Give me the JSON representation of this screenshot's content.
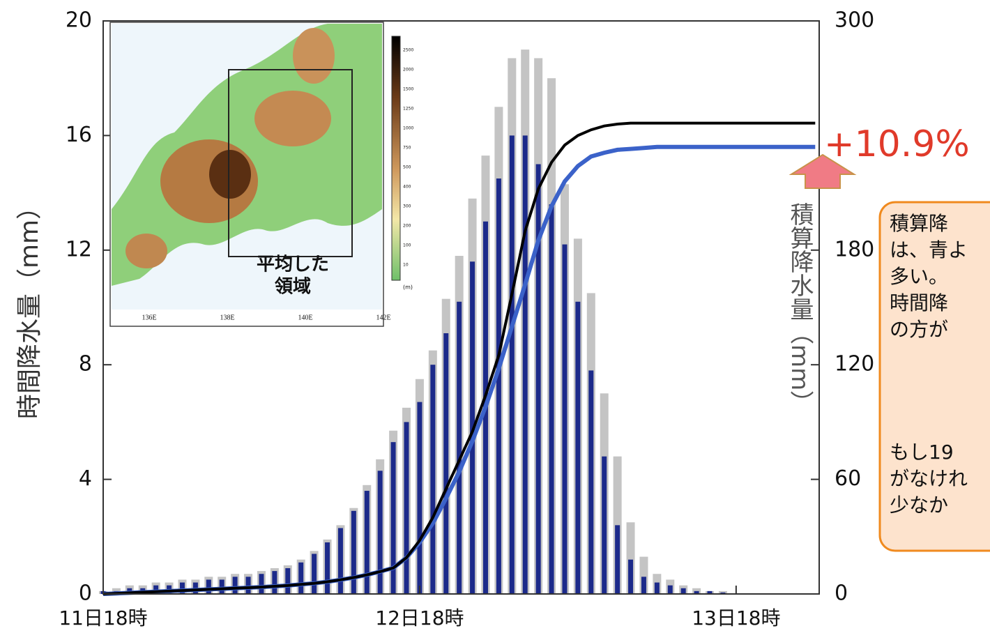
{
  "chart_data": {
    "type": "bar",
    "x": [
      0,
      1,
      2,
      3,
      4,
      5,
      6,
      7,
      8,
      9,
      10,
      11,
      12,
      13,
      14,
      15,
      16,
      17,
      18,
      19,
      20,
      21,
      22,
      23,
      24,
      25,
      26,
      27,
      28,
      29,
      30,
      31,
      32,
      33,
      34,
      35,
      36,
      37,
      38,
      39,
      40,
      41,
      42,
      43,
      44,
      45,
      46,
      47,
      48,
      49,
      50,
      51,
      52,
      53,
      54
    ],
    "xlim": [
      0,
      54.3
    ],
    "xticks": [
      {
        "value": 0,
        "label": "11日18時"
      },
      {
        "value": 24,
        "label": "12日18時"
      },
      {
        "value": 48,
        "label": "13日18時"
      }
    ],
    "ylabel": "時間降水量（mm）",
    "ylim": [
      0,
      20
    ],
    "yticks": [
      0,
      4,
      8,
      12,
      16,
      20
    ],
    "y2label": "積算降水量（mm）",
    "y2lim": [
      0,
      300
    ],
    "y2ticks": [
      0,
      60,
      120,
      180,
      300
    ],
    "series": [
      {
        "type": "bar",
        "color": "#c4c4c4",
        "values": [
          0.1,
          0.2,
          0.3,
          0.3,
          0.4,
          0.4,
          0.5,
          0.5,
          0.6,
          0.6,
          0.7,
          0.7,
          0.8,
          0.9,
          1.0,
          1.2,
          1.5,
          1.9,
          2.4,
          3.0,
          3.8,
          4.7,
          5.7,
          6.5,
          7.5,
          8.5,
          10.3,
          11.8,
          13.8,
          15.3,
          17.0,
          18.7,
          19.0,
          18.7,
          18.0,
          14.3,
          12.4,
          10.5,
          7.0,
          4.8,
          2.5,
          1.3,
          0.7,
          0.5,
          0.3,
          0.2,
          0.1,
          0.1,
          0,
          0,
          0,
          0,
          0,
          0,
          0
        ]
      },
      {
        "type": "bar",
        "color": "#1c2a8a",
        "values": [
          0.1,
          0.1,
          0.2,
          0.2,
          0.3,
          0.3,
          0.4,
          0.4,
          0.5,
          0.5,
          0.6,
          0.6,
          0.7,
          0.8,
          0.9,
          1.1,
          1.4,
          1.8,
          2.3,
          2.9,
          3.6,
          4.3,
          5.3,
          6.0,
          6.7,
          8.0,
          9.1,
          10.2,
          11.6,
          13.0,
          14.5,
          16.0,
          16.0,
          15.0,
          13.6,
          12.2,
          10.2,
          7.8,
          4.8,
          2.4,
          1.2,
          0.6,
          0.4,
          0.3,
          0.2,
          0.1,
          0.1,
          0.05,
          0,
          0,
          0,
          0,
          0,
          0,
          0
        ]
      },
      {
        "type": "line",
        "axis": "y2",
        "color": "#3b62c9",
        "values": [
          0,
          0.3,
          0.6,
          0.9,
          1.2,
          1.5,
          1.8,
          2.1,
          2.4,
          2.7,
          3.0,
          3.3,
          3.6,
          4.0,
          4.4,
          5.0,
          5.6,
          6.4,
          7.4,
          8.6,
          10,
          11.7,
          13.6,
          19,
          27,
          37,
          50,
          64,
          80,
          98,
          118,
          140,
          162,
          185,
          203,
          216,
          224,
          229,
          231,
          232.5,
          233,
          233.5,
          234,
          234,
          234,
          234,
          234,
          234,
          234,
          234,
          234,
          234,
          234,
          234,
          234
        ]
      },
      {
        "type": "line",
        "axis": "y2",
        "color": "#000000",
        "values": [
          0,
          0.3,
          0.6,
          0.9,
          1.2,
          1.5,
          1.8,
          2.1,
          2.4,
          2.7,
          3.0,
          3.3,
          3.6,
          4.0,
          4.4,
          5.0,
          5.6,
          6.4,
          7.4,
          8.6,
          10,
          11.7,
          13.6,
          19,
          28,
          40,
          55,
          70,
          85,
          104,
          125,
          157,
          190,
          212,
          226,
          235,
          240,
          243,
          245,
          246,
          246.5,
          246.5,
          246.5,
          246.5,
          246.5,
          246.5,
          246.5,
          246.5,
          246.5,
          246.5,
          246.5,
          246.5,
          246.5,
          246.5,
          246.5
        ]
      }
    ],
    "annotation": "+10.9%"
  },
  "inset": {
    "label_lines": [
      "平均した",
      "領域"
    ],
    "lon_labels": [
      "136E",
      "138E",
      "140E",
      "142E"
    ],
    "colorbar_labels": [
      "2500",
      "2000",
      "1500",
      "1250",
      "1000",
      "750",
      "500",
      "400",
      "300",
      "200",
      "100",
      "10"
    ],
    "unit": "(m)"
  },
  "note": {
    "lines": [
      "積算降",
      "は、青よ",
      "多い。",
      "時間降",
      "の方が",
      "もし19",
      "がなけれ",
      "少なか"
    ]
  }
}
